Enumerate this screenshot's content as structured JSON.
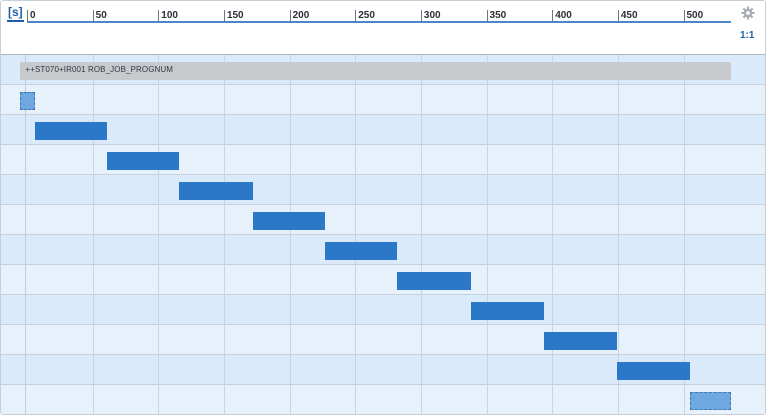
{
  "axis": {
    "unit_label": "[s]",
    "zoom_label": "1:1",
    "ticks": [
      {
        "value": 0,
        "label": "0"
      },
      {
        "value": 50,
        "label": "50"
      },
      {
        "value": 100,
        "label": "100"
      },
      {
        "value": 150,
        "label": "150"
      },
      {
        "value": 200,
        "label": "200"
      },
      {
        "value": 250,
        "label": "250"
      },
      {
        "value": 300,
        "label": "300"
      },
      {
        "value": 350,
        "label": "350"
      },
      {
        "value": 400,
        "label": "400"
      },
      {
        "value": 450,
        "label": "450"
      },
      {
        "value": 500,
        "label": "500"
      }
    ]
  },
  "settings_icon": "gear-icon",
  "group": {
    "label": "++ST070+IR001 ROB_JOB_PROGNUM",
    "start_s": -5,
    "end_s": 536
  },
  "steps": [
    {
      "start_s": -5,
      "end_s": 6,
      "placeholder": true
    },
    {
      "start_s": 6,
      "end_s": 61,
      "placeholder": false
    },
    {
      "start_s": 61,
      "end_s": 116,
      "placeholder": false
    },
    {
      "start_s": 116,
      "end_s": 172,
      "placeholder": false
    },
    {
      "start_s": 172,
      "end_s": 227,
      "placeholder": false
    },
    {
      "start_s": 227,
      "end_s": 282,
      "placeholder": false
    },
    {
      "start_s": 282,
      "end_s": 338,
      "placeholder": false
    },
    {
      "start_s": 338,
      "end_s": 394,
      "placeholder": false
    },
    {
      "start_s": 394,
      "end_s": 449,
      "placeholder": false
    },
    {
      "start_s": 449,
      "end_s": 505,
      "placeholder": false
    },
    {
      "start_s": 505,
      "end_s": 536,
      "placeholder": true
    }
  ],
  "colors": {
    "bar": "#2b78c8",
    "placeholder_bar": "#6fa8e0",
    "group_bar": "#c7c9cc",
    "axis_accent": "#1f5fa8"
  }
}
